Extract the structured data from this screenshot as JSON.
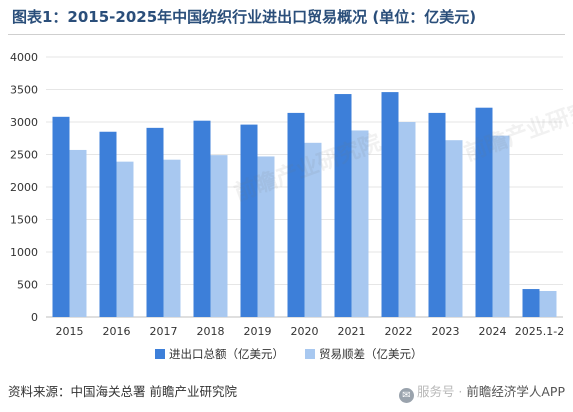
{
  "title": "图表1：2015-2025年中国纺织行业进出口贸易概况 (单位：亿美元)",
  "source": "资料来源：中国海关总署 前瞻产业研究院",
  "watermark": {
    "service_prefix": "服务号 · ",
    "brand": "前瞻经济学人APP",
    "brand_overlay": "前瞻产业研究院"
  },
  "colors": {
    "series1": "#3d7fd9",
    "series2": "#a8c8f0",
    "grid": "#e6e6e6",
    "axis": "#bfbfbf",
    "title": "#2a4e7a"
  },
  "chart_data": {
    "type": "bar",
    "categories": [
      "2015",
      "2016",
      "2017",
      "2018",
      "2019",
      "2020",
      "2021",
      "2022",
      "2023",
      "2024",
      "2025.1-2"
    ],
    "series": [
      {
        "name": "进出口总额（亿美元）",
        "values": [
          3080,
          2850,
          2910,
          3020,
          2960,
          3140,
          3430,
          3460,
          3140,
          3220,
          430
        ]
      },
      {
        "name": "贸易顺差（亿美元）",
        "values": [
          2570,
          2390,
          2420,
          2490,
          2470,
          2680,
          2870,
          3000,
          2720,
          2790,
          400
        ]
      }
    ],
    "ylim": [
      0,
      4000
    ],
    "yticks": [
      0,
      500,
      1000,
      1500,
      2000,
      2500,
      3000,
      3500,
      4000
    ],
    "grid": true,
    "legend_position": "bottom"
  }
}
